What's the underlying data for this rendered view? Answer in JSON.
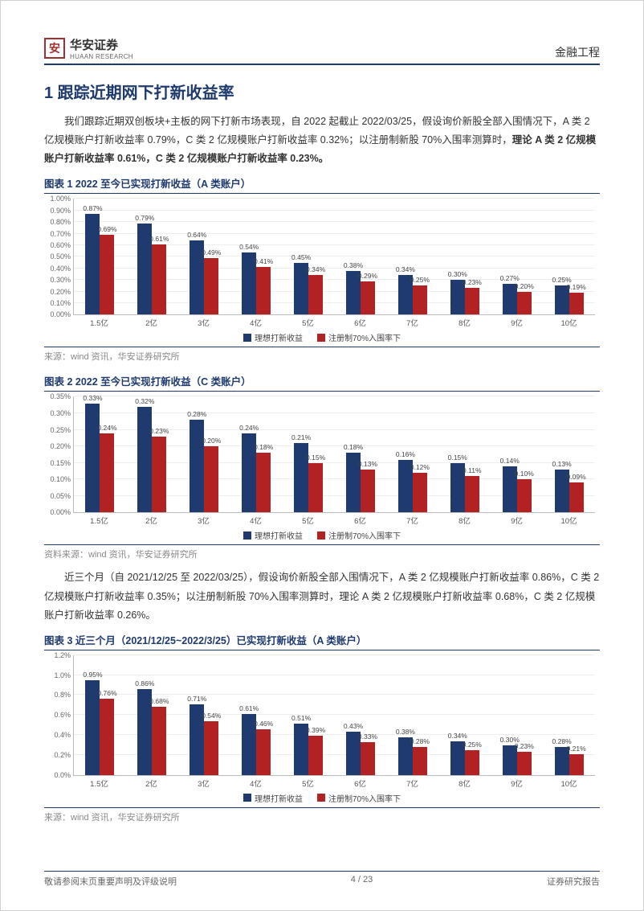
{
  "header": {
    "logo_char": "安",
    "company": "华安证券",
    "company_en": "HUAAN RESEARCH",
    "right": "金融工程"
  },
  "section_title": "1 跟踪近期网下打新收益率",
  "para1_a": "我们跟踪近期双创板块+主板的网下打新市场表现，自 2022 起截止 2022/03/25，假设询价新股全部入围情况下，A 类 2 亿规模账户打新收益率 0.79%，C 类 2 亿规模账户打新收益率 0.32%；以注册制新股 70%入围率测算时，",
  "para1_b": "理论 A 类 2 亿规模账户打新收益率 0.61%，C 类 2 亿规模账户打新收益率 0.23%。",
  "para2": "近三个月（自 2021/12/25 至 2022/03/25），假设询价新股全部入围情况下，A 类 2 亿规模账户打新收益率 0.86%，C 类 2 亿规模账户打新收益率 0.35%；以注册制新股 70%入围率测算时，理论 A 类 2 亿规模账户打新收益率 0.68%，C 类 2 亿规模账户打新收益率 0.26%。",
  "source_text": "来源：wind 资讯，华安证券研究所",
  "source_text2": "资料来源：wind 资讯，华安证券研究所",
  "legend": {
    "a": "理想打新收益",
    "b": "注册制70%入围率下"
  },
  "charts": [
    {
      "title": "图表 1 2022 至今已实现打新收益（A 类账户）",
      "ymax": 1.0,
      "ystep": 0.1,
      "yfmt": "pct2",
      "categories": [
        "1.5亿",
        "2亿",
        "3亿",
        "4亿",
        "5亿",
        "6亿",
        "7亿",
        "8亿",
        "9亿",
        "10亿"
      ],
      "series_a": [
        0.87,
        0.79,
        0.64,
        0.54,
        0.45,
        0.38,
        0.34,
        0.3,
        0.27,
        0.25
      ],
      "series_b": [
        0.69,
        0.61,
        0.49,
        0.41,
        0.34,
        0.29,
        0.25,
        0.23,
        0.2,
        0.19
      ],
      "source_key": "source_text"
    },
    {
      "title": "图表 2 2022 至今已实现打新收益（C 类账户）",
      "ymax": 0.35,
      "ystep": 0.05,
      "yfmt": "pct2",
      "categories": [
        "1.5亿",
        "2亿",
        "3亿",
        "4亿",
        "5亿",
        "6亿",
        "7亿",
        "8亿",
        "9亿",
        "10亿"
      ],
      "series_a": [
        0.33,
        0.32,
        0.28,
        0.24,
        0.21,
        0.18,
        0.16,
        0.15,
        0.14,
        0.13
      ],
      "series_b": [
        0.24,
        0.23,
        0.2,
        0.18,
        0.15,
        0.13,
        0.12,
        0.11,
        0.1,
        0.09
      ],
      "source_key": "source_text2"
    },
    {
      "title": "图表 3 近三个月（2021/12/25~2022/3/25）已实现打新收益（A 类账户）",
      "ymax": 1.2,
      "ystep": 0.2,
      "yfmt": "pct1",
      "categories": [
        "1.5亿",
        "2亿",
        "3亿",
        "4亿",
        "5亿",
        "6亿",
        "7亿",
        "8亿",
        "9亿",
        "10亿"
      ],
      "series_a": [
        0.95,
        0.86,
        0.71,
        0.61,
        0.51,
        0.43,
        0.38,
        0.34,
        0.3,
        0.28
      ],
      "series_b": [
        0.76,
        0.68,
        0.54,
        0.46,
        0.39,
        0.33,
        0.28,
        0.25,
        0.23,
        0.21
      ],
      "source_key": "source_text"
    }
  ],
  "footer": {
    "left": "敬请参阅末页重要声明及评级说明",
    "center": "4 / 23",
    "right": "证券研究报告"
  },
  "colors": {
    "brand_blue": "#1f3a6e",
    "brand_red": "#b22222",
    "grid": "#eeeeee",
    "text": "#333333"
  }
}
